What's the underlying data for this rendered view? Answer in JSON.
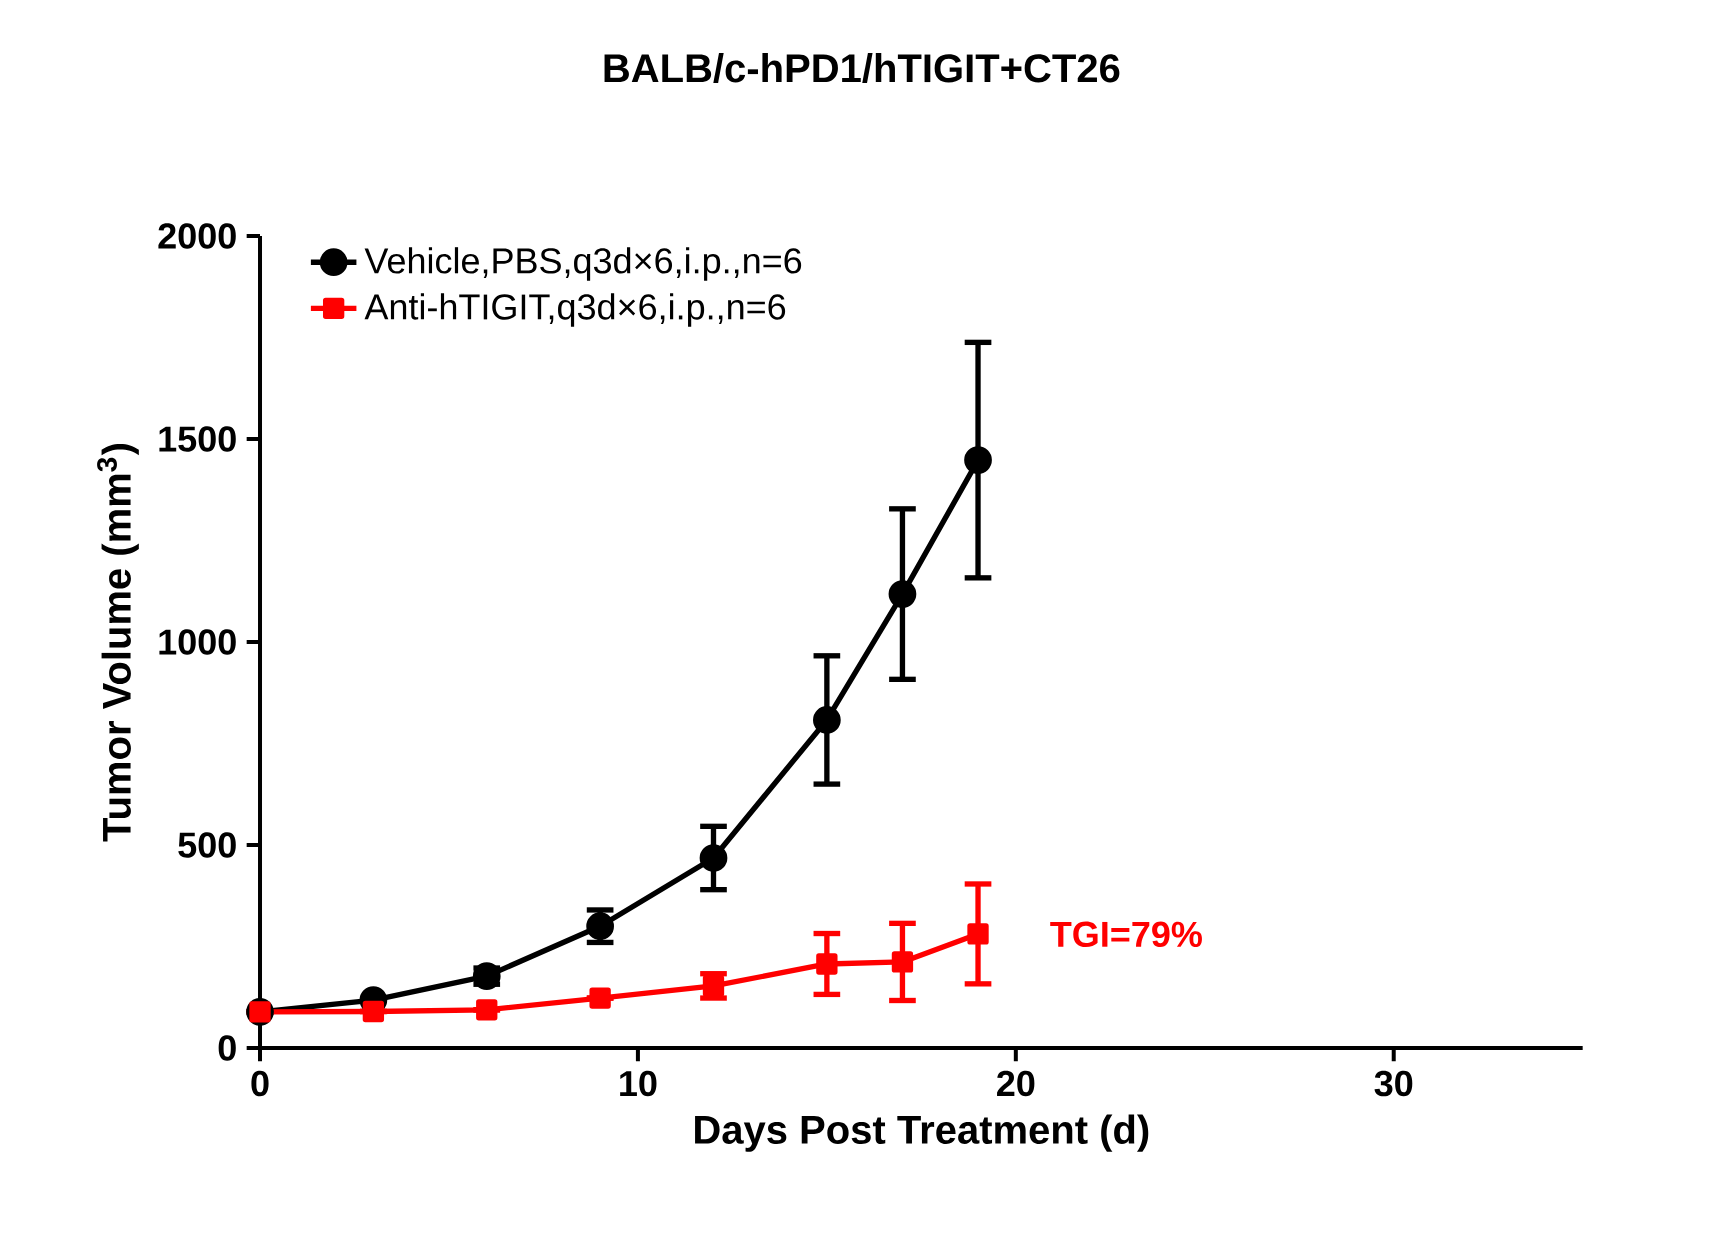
{
  "chart_data": {
    "type": "line",
    "title": "BALB/c-hPD1/hTIGIT+CT26",
    "xlabel": "Days Post Treatment (d)",
    "ylabel": "Tumor Volume (mm$^{3}$)",
    "x": [
      0,
      3,
      6,
      9,
      12,
      15,
      17,
      19
    ],
    "series": [
      {
        "name": "Vehicle,PBS,q3d×6,i.p.,n=6",
        "color": "#000000",
        "marker": "circle",
        "values": [
          89,
          118,
          177,
          300,
          468,
          808,
          1118,
          1448
        ],
        "errors": [
          null,
          null,
          20,
          40,
          78,
          158,
          210,
          290
        ]
      },
      {
        "name": "Anti-hTIGIT,q3d×6,i.p.,n=6",
        "color": "#ff0000",
        "marker": "square",
        "values": [
          89,
          90,
          94,
          123,
          153,
          207,
          212,
          281
        ],
        "errors": [
          null,
          null,
          null,
          null,
          30,
          75,
          95,
          123
        ]
      }
    ],
    "annotations": [
      "TGI=79%"
    ],
    "xlim": [
      0,
      35
    ],
    "xticks": [
      0,
      10,
      20,
      30
    ],
    "ylim": [
      0,
      2000
    ],
    "yticks": [
      0,
      500,
      1000,
      1500,
      2000
    ],
    "grid": false,
    "legend": "top left",
    "line_style": "solid"
  }
}
